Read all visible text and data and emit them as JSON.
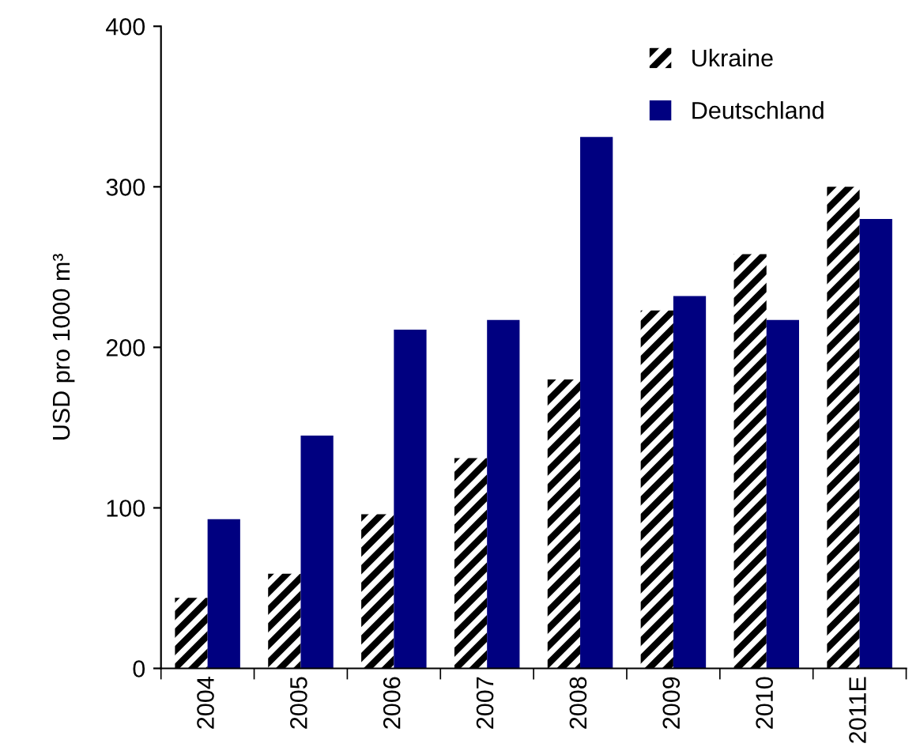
{
  "chart_data": {
    "type": "bar",
    "ylabel": "USD pro 1000 m³",
    "categories": [
      "2004",
      "2005",
      "2006",
      "2007",
      "2008",
      "2009",
      "2010",
      "2011E"
    ],
    "series": [
      {
        "name": "Ukraine",
        "color": "#000000",
        "values": [
          44,
          59,
          96,
          131,
          180,
          223,
          258,
          300
        ]
      },
      {
        "name": "Deutschland",
        "color": "#000080",
        "values": [
          93,
          145,
          211,
          217,
          331,
          232,
          217,
          280
        ]
      }
    ],
    "ylim": [
      0,
      400
    ],
    "yticks": [
      0,
      100,
      200,
      300,
      400
    ],
    "grid": false,
    "legend": "top right"
  }
}
